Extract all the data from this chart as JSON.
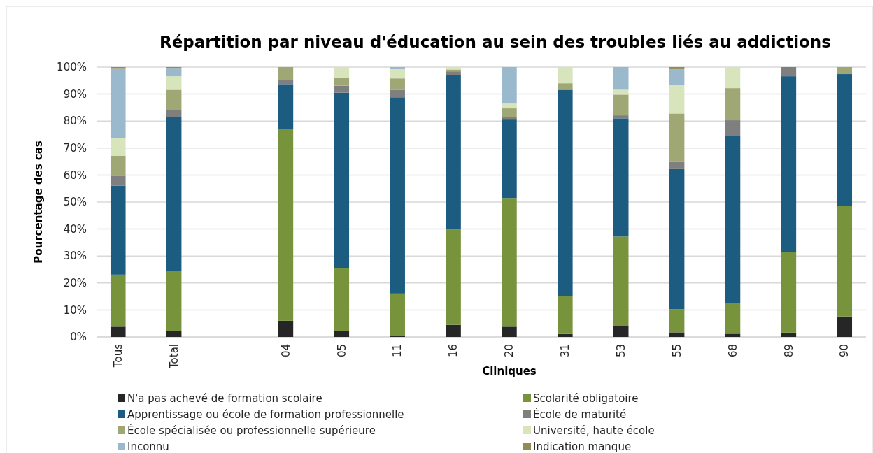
{
  "chart_data": {
    "type": "bar",
    "stacked": true,
    "title": "Répartition par niveau d'éducation au sein des troubles liés au addictions",
    "xlabel": "Cliniques",
    "ylabel": "Pourcentage des cas",
    "categories": [
      "Tous",
      "Total",
      null,
      "04",
      "05",
      "11",
      "16",
      "20",
      "31",
      "53",
      "55",
      "68",
      "89",
      "90"
    ],
    "ylim": [
      0,
      100
    ],
    "yticks": [
      {
        "value": 0,
        "label": "0%"
      },
      {
        "value": 10,
        "label": "10%"
      },
      {
        "value": 20,
        "label": "20%"
      },
      {
        "value": 30,
        "label": "30%"
      },
      {
        "value": 40,
        "label": "40%"
      },
      {
        "value": 50,
        "label": "50%"
      },
      {
        "value": 60,
        "label": "60%"
      },
      {
        "value": 70,
        "label": "70%"
      },
      {
        "value": 80,
        "label": "80%"
      },
      {
        "value": 90,
        "label": "90%"
      },
      {
        "value": 100,
        "label": "100%"
      }
    ],
    "grid": "y",
    "legend": "bottom",
    "series": [
      {
        "name": "N'a pas achevé de formation scolaire",
        "color": "#262626",
        "values": [
          3.8,
          2.3,
          null,
          6.0,
          2.3,
          0.3,
          4.5,
          3.8,
          1.1,
          4.0,
          1.7,
          1.2,
          1.6,
          7.6
        ]
      },
      {
        "name": "Scolarité obligatoire",
        "color": "#77933c",
        "values": [
          19.3,
          22.2,
          null,
          70.8,
          23.3,
          15.8,
          35.3,
          47.7,
          14.1,
          33.2,
          8.6,
          11.3,
          30.0,
          40.9
        ]
      },
      {
        "name": "Apprentissage ou école de formation professionnelle",
        "color": "#1b5c80",
        "values": [
          33.0,
          57.1,
          null,
          16.9,
          64.9,
          72.7,
          57.3,
          29.3,
          76.4,
          43.8,
          51.9,
          62.1,
          65.0,
          48.9
        ]
      },
      {
        "name": "École de maturité",
        "color": "#7f7f7f",
        "values": [
          3.5,
          2.4,
          null,
          1.5,
          2.6,
          2.8,
          1.3,
          0.8,
          0,
          1.1,
          2.6,
          5.7,
          3.4,
          0
        ]
      },
      {
        "name": "École spécialisée ou professionnelle supérieure",
        "color": "#9fa874",
        "values": [
          7.6,
          7.6,
          null,
          4.8,
          3.1,
          4.2,
          0.7,
          3.1,
          2.4,
          7.7,
          18.0,
          11.9,
          0,
          2.6
        ]
      },
      {
        "name": "Université, haute école",
        "color": "#d8e4bc",
        "values": [
          6.6,
          5.0,
          null,
          0,
          3.8,
          3.5,
          0.9,
          1.8,
          6.0,
          1.8,
          10.6,
          7.8,
          0,
          0
        ]
      },
      {
        "name": "Inconnu",
        "color": "#9bb9cc",
        "values": [
          25.8,
          3.1,
          null,
          0,
          0,
          0.7,
          0,
          13.5,
          0,
          8.4,
          6.1,
          0,
          0,
          0
        ]
      },
      {
        "name": "Indication manque",
        "color": "#948a54",
        "values": [
          0.4,
          0.3,
          null,
          0,
          0,
          0,
          0,
          0,
          0,
          0,
          0.5,
          0,
          0,
          0
        ]
      }
    ]
  }
}
